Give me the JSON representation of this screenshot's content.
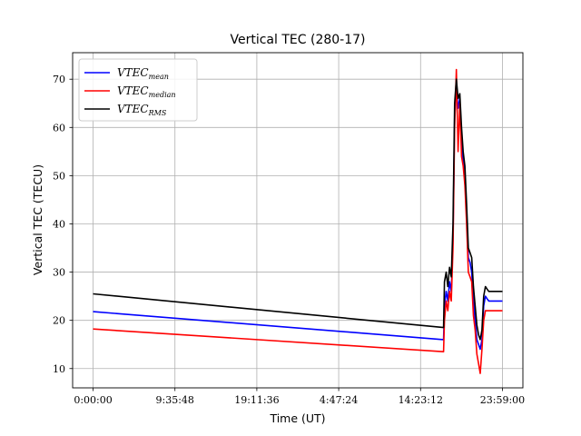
{
  "chart_data": {
    "type": "line",
    "title": "Vertical TEC (280-17)",
    "xlabel": "Time (UT)",
    "ylabel": "Vertical TEC (TECU)",
    "x_unit": "hours (UT)",
    "xlim": [
      -1.2,
      25.2
    ],
    "ylim": [
      6,
      75.5
    ],
    "x_ticks": [
      {
        "value": 0,
        "label": "0:00:00"
      },
      {
        "value": 4.8,
        "label": "9:35:48"
      },
      {
        "value": 9.6,
        "label": "19:11:36"
      },
      {
        "value": 14.4,
        "label": "4:47:24"
      },
      {
        "value": 19.2,
        "label": "14:23:12"
      },
      {
        "value": 24.0,
        "label": "23:59:00"
      }
    ],
    "y_ticks": [
      10,
      20,
      30,
      40,
      50,
      60,
      70
    ],
    "grid": true,
    "legend_position": "top-left",
    "series": [
      {
        "name": "VTEC",
        "subscript": "mean",
        "color": "#0000ff",
        "x": [
          0,
          20.55,
          20.6,
          20.7,
          20.8,
          20.9,
          21.0,
          21.1,
          21.2,
          21.3,
          21.4,
          21.5,
          21.6,
          21.7,
          21.8,
          21.9,
          22.0,
          22.1,
          22.2,
          22.3,
          22.4,
          22.5,
          22.6,
          22.7,
          22.8,
          22.9,
          23.0,
          23.1,
          23.2,
          23.3,
          23.4,
          23.5,
          23.6,
          23.7,
          23.8,
          23.9,
          24.0
        ],
        "y": [
          21.8,
          16.0,
          23.0,
          26.0,
          24.0,
          28.0,
          26.0,
          37.0,
          62.0,
          68.0,
          64.0,
          66.0,
          57.0,
          53.0,
          50.0,
          42.0,
          33.0,
          32.0,
          30.0,
          24.0,
          20.0,
          16.0,
          15.0,
          14.0,
          16.0,
          23.0,
          25.0,
          24.5,
          24.0,
          24.0,
          24.0,
          24.0,
          24.0,
          24.0,
          24.0,
          24.0,
          24.0
        ]
      },
      {
        "name": "VTEC",
        "subscript": "median",
        "color": "#ff0000",
        "x": [
          0,
          20.55,
          20.6,
          20.7,
          20.8,
          20.9,
          21.0,
          21.1,
          21.2,
          21.3,
          21.4,
          21.5,
          21.6,
          21.7,
          21.8,
          21.9,
          22.0,
          22.1,
          22.2,
          22.3,
          22.4,
          22.5,
          22.6,
          22.7,
          22.8,
          22.9,
          23.0,
          23.1,
          23.2,
          23.3,
          23.4,
          23.5,
          23.6,
          23.7,
          23.8,
          23.9,
          24.0
        ],
        "y": [
          18.2,
          13.5,
          20.0,
          24.0,
          22.0,
          26.0,
          24.0,
          35.0,
          60.0,
          72.0,
          55.0,
          65.0,
          54.0,
          52.0,
          48.0,
          40.0,
          30.0,
          29.0,
          28.0,
          21.0,
          18.0,
          13.0,
          11.0,
          9.0,
          14.0,
          20.0,
          22.0,
          22.0,
          22.0,
          22.0,
          22.0,
          22.0,
          22.0,
          22.0,
          22.0,
          22.0,
          22.0
        ]
      },
      {
        "name": "VTEC",
        "subscript": "RMS",
        "color": "#000000",
        "x": [
          0,
          20.55,
          20.6,
          20.7,
          20.8,
          20.9,
          21.0,
          21.1,
          21.2,
          21.3,
          21.4,
          21.5,
          21.6,
          21.7,
          21.8,
          21.9,
          22.0,
          22.1,
          22.2,
          22.3,
          22.4,
          22.5,
          22.6,
          22.7,
          22.8,
          22.9,
          23.0,
          23.1,
          23.2,
          23.3,
          23.4,
          23.5,
          23.6,
          23.7,
          23.8,
          23.9,
          24.0
        ],
        "y": [
          25.5,
          18.5,
          28.0,
          30.0,
          27.0,
          31.0,
          29.0,
          40.0,
          65.0,
          70.0,
          66.0,
          67.0,
          60.0,
          55.0,
          52.0,
          44.0,
          35.0,
          34.0,
          33.0,
          27.0,
          23.0,
          19.0,
          17.0,
          16.0,
          18.0,
          25.0,
          27.0,
          26.5,
          26.0,
          26.0,
          26.0,
          26.0,
          26.0,
          26.0,
          26.0,
          26.0,
          26.0
        ]
      }
    ]
  }
}
